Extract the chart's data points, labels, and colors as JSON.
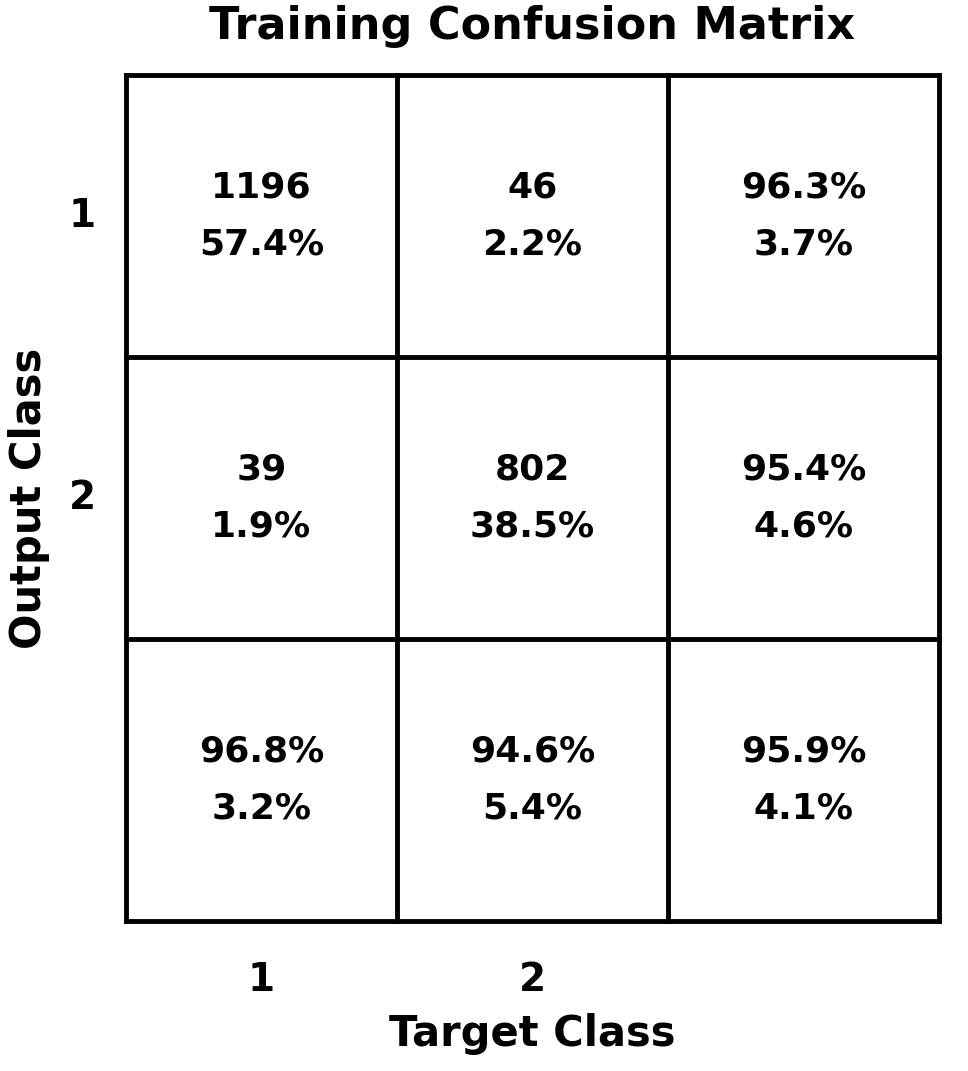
{
  "title": "Training Confusion Matrix",
  "xlabel": "Target Class",
  "ylabel": "Output Class",
  "grid_rows": 3,
  "grid_cols": 3,
  "background_color": "#ffffff",
  "cell_bg": "#ffffff",
  "border_color": "#000000",
  "title_fontsize": 32,
  "label_fontsize": 30,
  "tick_fontsize": 28,
  "cell_fontsize_large": 26,
  "border_linewidth": 3.5,
  "cells": [
    {
      "row": 0,
      "col": 0,
      "line1": "1196",
      "line2": "57.4%"
    },
    {
      "row": 0,
      "col": 1,
      "line1": "46",
      "line2": "2.2%"
    },
    {
      "row": 0,
      "col": 2,
      "line1": "96.3%",
      "line2": "3.7%"
    },
    {
      "row": 1,
      "col": 0,
      "line1": "39",
      "line2": "1.9%"
    },
    {
      "row": 1,
      "col": 1,
      "line1": "802",
      "line2": "38.5%"
    },
    {
      "row": 1,
      "col": 2,
      "line1": "95.4%",
      "line2": "4.6%"
    },
    {
      "row": 2,
      "col": 0,
      "line1": "96.8%",
      "line2": "3.2%"
    },
    {
      "row": 2,
      "col": 1,
      "line1": "94.6%",
      "line2": "5.4%"
    },
    {
      "row": 2,
      "col": 2,
      "line1": "95.9%",
      "line2": "4.1%"
    }
  ],
  "row_labels": [
    "1",
    "2",
    ""
  ],
  "col_labels": [
    "1",
    "2",
    ""
  ]
}
